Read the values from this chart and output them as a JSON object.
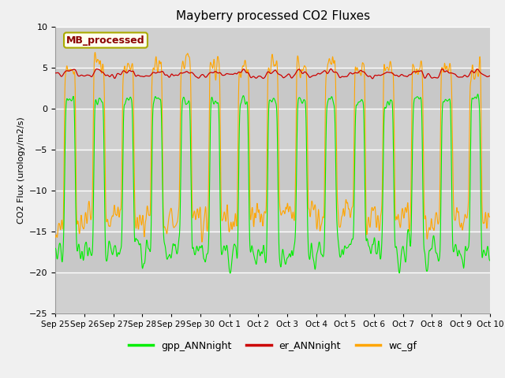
{
  "title": "Mayberry processed CO2 Fluxes",
  "ylabel": "CO2 Flux (urology/m2/s)",
  "ylim": [
    -25,
    10
  ],
  "yticks": [
    -25,
    -20,
    -15,
    -10,
    -5,
    0,
    5,
    10
  ],
  "fig_bg_color": "#f0f0f0",
  "plot_bg_color": "#dcdcdc",
  "legend_label": "MB_processed",
  "legend_text_color": "#8b0000",
  "legend_box_facecolor": "#fffff0",
  "legend_box_edgecolor": "#aaaa00",
  "line_gpp_color": "#00ee00",
  "line_er_color": "#cc0000",
  "line_wc_color": "#ffa500",
  "n_days": 15,
  "points_per_day": 96,
  "tick_labels": [
    "Sep 25",
    "Sep 26",
    "Sep 27",
    "Sep 28",
    "Sep 29",
    "Sep 30",
    "Oct 1",
    "Oct 2",
    "Oct 3",
    "Oct 4",
    "Oct 5",
    "Oct 6",
    "Oct 7",
    "Oct 8",
    "Oct 9",
    "Oct 10"
  ],
  "title_fontsize": 11,
  "ylabel_fontsize": 8,
  "tick_fontsize": 8,
  "xtick_fontsize": 7.5
}
